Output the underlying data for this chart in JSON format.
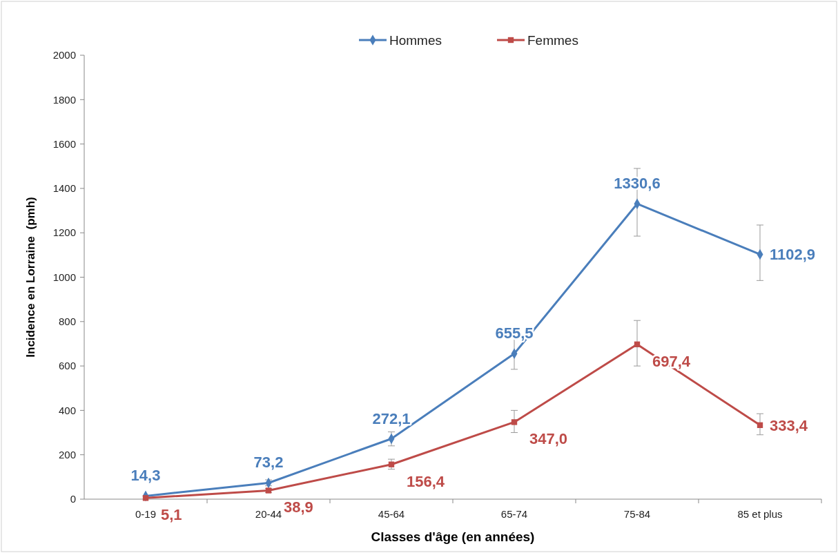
{
  "chart_data": {
    "type": "line",
    "xlabel": "Classes d'âge (en années)",
    "ylabel": "Incidence en Lorraine  (pmh)",
    "categories": [
      "0-19",
      "20-44",
      "45-64",
      "65-74",
      "75-84",
      "85 et plus"
    ],
    "series": [
      {
        "name": "Hommes",
        "color": "#4a7ebb",
        "marker": "diamond",
        "values": [
          14.3,
          73.2,
          272.1,
          655.5,
          1330.6,
          1102.9
        ],
        "value_labels": [
          "14,3",
          "73,2",
          "272,1",
          "655,5",
          "1330,6",
          "1102,9"
        ],
        "errors": [
          null,
          [
            60,
            87
          ],
          [
            240,
            303
          ],
          [
            585,
            737
          ],
          [
            1185,
            1490
          ],
          [
            985,
            1235
          ]
        ]
      },
      {
        "name": "Femmes",
        "color": "#be4b48",
        "marker": "square",
        "values": [
          5.1,
          38.9,
          156.4,
          347.0,
          697.4,
          333.4
        ],
        "value_labels": [
          "5,1",
          "38,9",
          "156,4",
          "347,0",
          "697,4",
          "333,4"
        ],
        "errors": [
          null,
          [
            30,
            48
          ],
          [
            135,
            180
          ],
          [
            300,
            400
          ],
          [
            600,
            805
          ],
          [
            290,
            385
          ]
        ]
      }
    ],
    "ylim": [
      0,
      2000
    ],
    "yticks": [
      0,
      200,
      400,
      600,
      800,
      1000,
      1200,
      1400,
      1600,
      1800,
      2000
    ],
    "grid": false,
    "legend": "top",
    "line_style": "solid"
  }
}
